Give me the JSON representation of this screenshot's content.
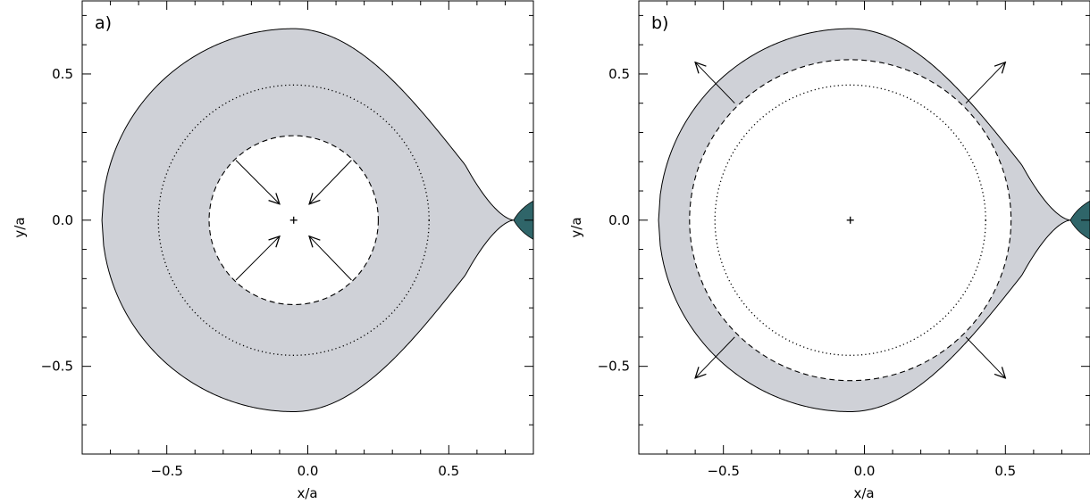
{
  "panels": [
    {
      "id": "a",
      "label": "a)",
      "xlabel": "x/a",
      "ylabel": "y/a",
      "xlim": [
        -0.8,
        0.8
      ],
      "ylim": [
        -0.8,
        0.75
      ],
      "xticks": [
        -0.5,
        0.0,
        0.5
      ],
      "xtick_labels": [
        "−0.5",
        "0.0",
        "0.5"
      ],
      "yticks": [
        -0.5,
        0.0,
        0.5
      ],
      "ytick_labels": [
        "−0.5",
        "0.0",
        "0.5"
      ],
      "center": [
        -0.05,
        0.0
      ],
      "dotted_circle_radius": 0.48,
      "dashed_circle_radius": 0.3,
      "shaded_region": "between dashed circle and Roche lobe",
      "arrows_direction": "inward",
      "arrows": [
        {
          "from": [
            -0.255,
            0.205
          ],
          "to": [
            -0.1,
            0.055
          ]
        },
        {
          "from": [
            0.155,
            0.205
          ],
          "to": [
            0.005,
            0.055
          ]
        },
        {
          "from": [
            -0.255,
            -0.205
          ],
          "to": [
            -0.1,
            -0.055
          ]
        },
        {
          "from": [
            0.155,
            -0.205
          ],
          "to": [
            0.005,
            -0.055
          ]
        }
      ]
    },
    {
      "id": "b",
      "label": "b)",
      "xlabel": "x/a",
      "ylabel": "y/a",
      "xlim": [
        -0.8,
        0.8
      ],
      "ylim": [
        -0.8,
        0.75
      ],
      "xticks": [
        -0.5,
        0.0,
        0.5
      ],
      "xtick_labels": [
        "−0.5",
        "0.0",
        "0.5"
      ],
      "yticks": [
        -0.5,
        0.0,
        0.5
      ],
      "ytick_labels": [
        "−0.5",
        "0.0",
        "0.5"
      ],
      "center": [
        -0.05,
        0.0
      ],
      "dotted_circle_radius": 0.48,
      "dashed_circle_radius": 0.57,
      "shaded_region": "between dashed circle and Roche lobe",
      "arrows_direction": "outward",
      "arrows": [
        {
          "from": [
            0.36,
            0.4
          ],
          "to": [
            0.5,
            0.54
          ]
        },
        {
          "from": [
            -0.46,
            0.4
          ],
          "to": [
            -0.6,
            0.54
          ]
        },
        {
          "from": [
            0.36,
            -0.4
          ],
          "to": [
            0.5,
            -0.54
          ]
        },
        {
          "from": [
            -0.46,
            -0.4
          ],
          "to": [
            -0.6,
            -0.54
          ]
        }
      ]
    }
  ],
  "roche_lobe": {
    "left_x": -0.73,
    "right_x": 0.73,
    "max_height": 0.655,
    "max_height_x": -0.05
  },
  "companion": {
    "description": "companion lobe at inner Lagrangian point",
    "cusp_x": 0.73
  },
  "colors": {
    "shaded_fill": "#cfd1d7",
    "companion_fill": "#2f6569",
    "line": "#000000",
    "background": "#ffffff"
  }
}
